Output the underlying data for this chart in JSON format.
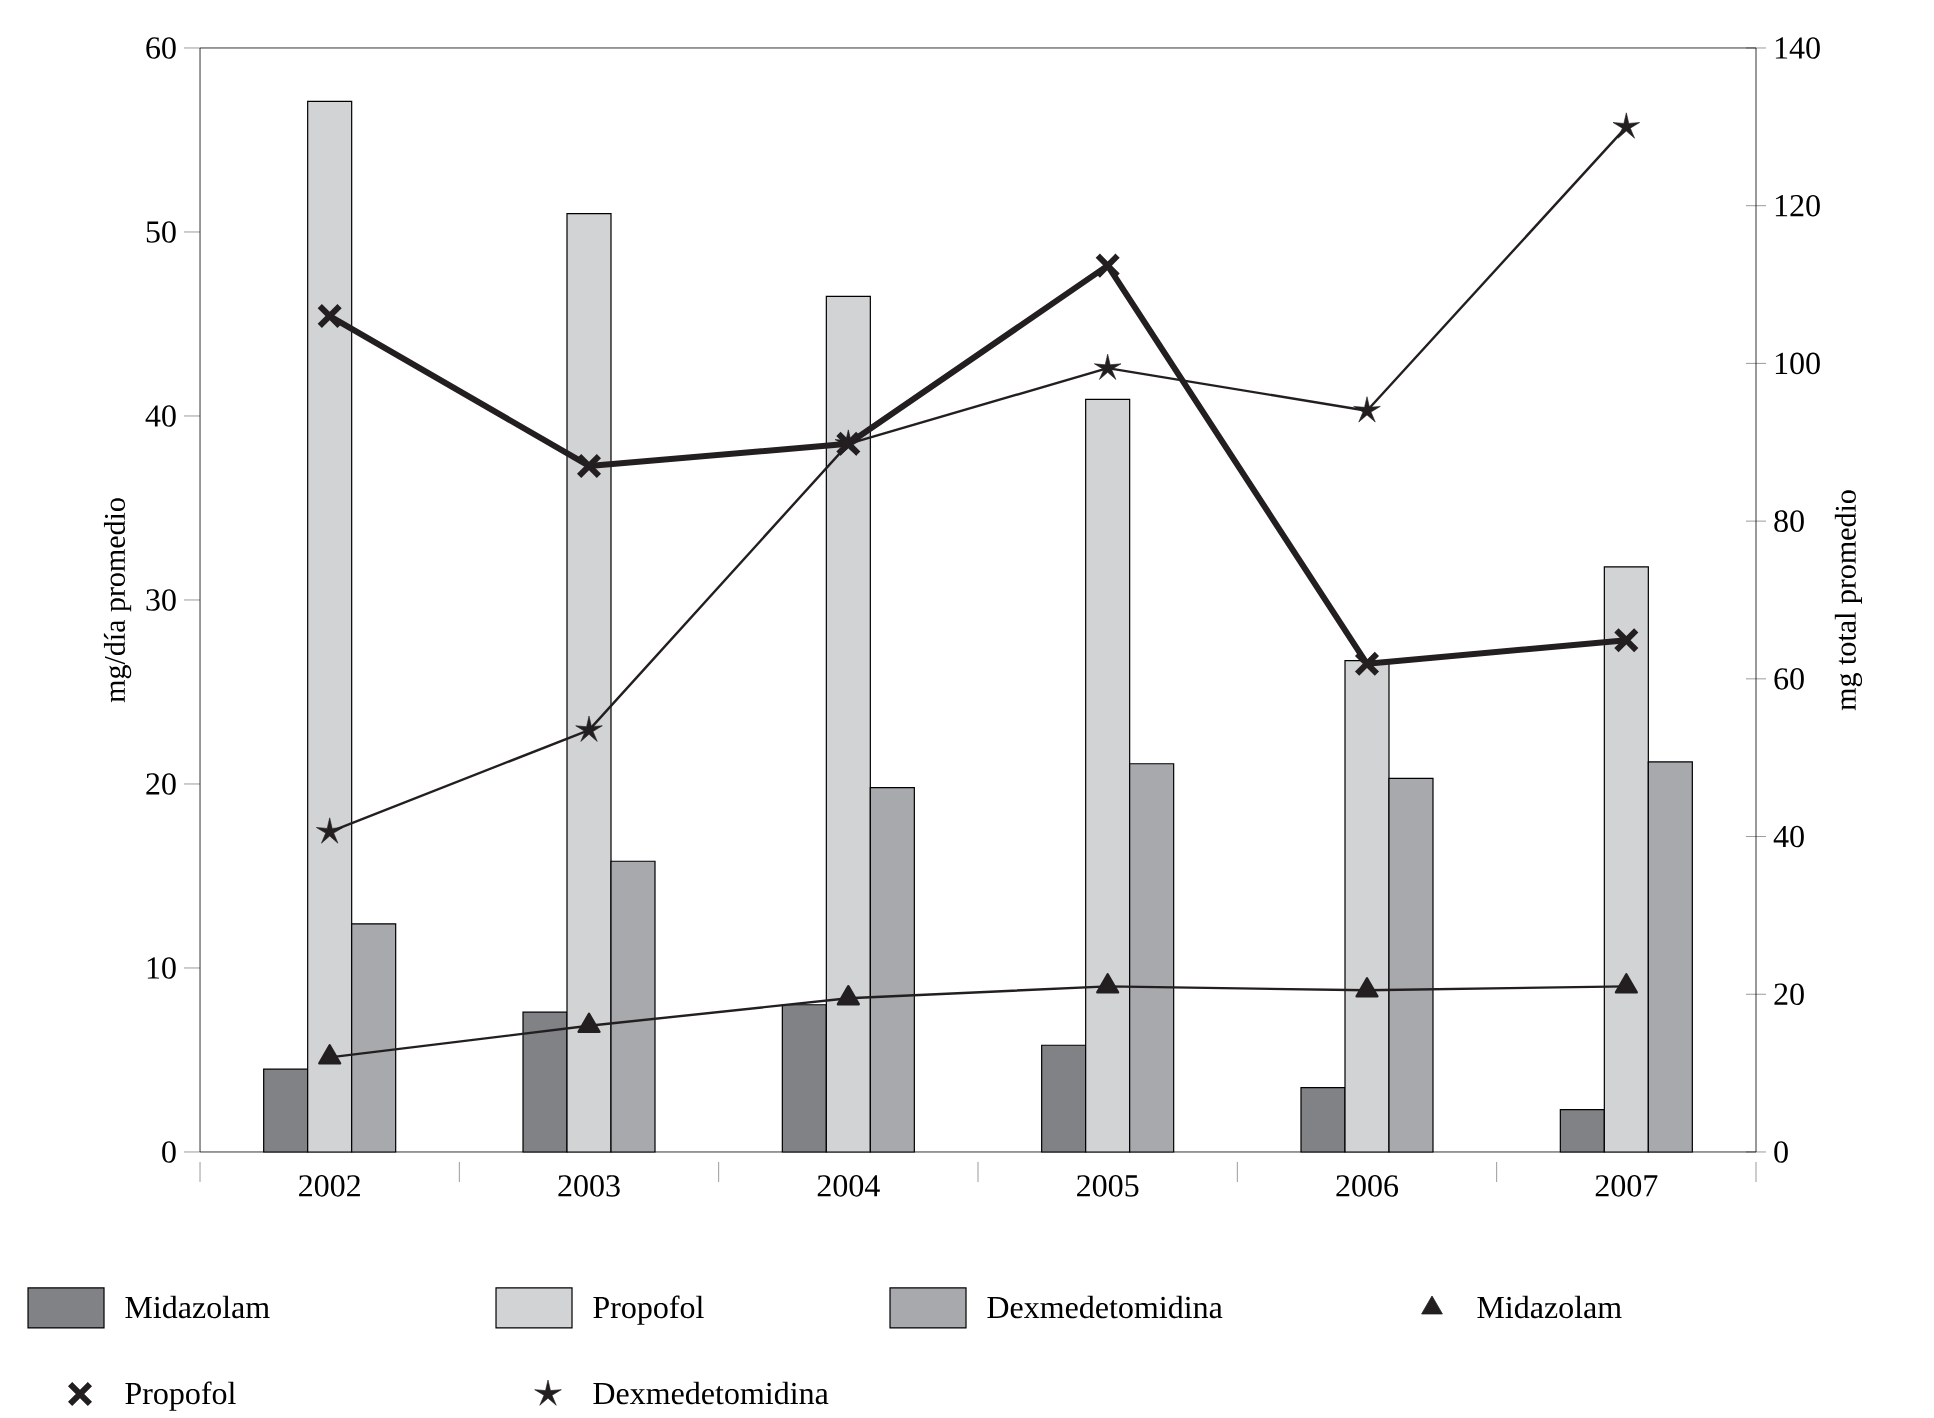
{
  "chart_data": {
    "type": "bar",
    "categories": [
      "2002",
      "2003",
      "2004",
      "2005",
      "2006",
      "2007"
    ],
    "ylabel": "mg/día promedio",
    "y2label": "mg total promedio",
    "ylim": [
      0,
      60
    ],
    "yticks": [
      0,
      10,
      20,
      30,
      40,
      50,
      60
    ],
    "y2lim": [
      0,
      140
    ],
    "y2ticks": [
      0,
      20,
      40,
      60,
      80,
      100,
      120,
      140
    ],
    "legend": "bottom",
    "series": [
      {
        "name": "Midazolam",
        "color": "#808285",
        "values": [
          4.5,
          7.6,
          8.0,
          5.8,
          3.5,
          2.3
        ]
      },
      {
        "name": "Propofol",
        "color": "#d1d3d4",
        "values": [
          57.1,
          51.0,
          46.5,
          40.9,
          26.7,
          31.8
        ]
      },
      {
        "name": "Dexmedetomidina",
        "color": "#a7a9ac",
        "values": [
          12.4,
          15.8,
          19.8,
          21.1,
          20.3,
          21.2
        ]
      },
      {
        "name": "Midazolam",
        "type": "line",
        "axis": "y2",
        "marker": "triangle",
        "color": "#231f20",
        "values": [
          12,
          16,
          19.5,
          21,
          20.5,
          21
        ]
      },
      {
        "name": "Propofol",
        "type": "line",
        "axis": "y2",
        "marker": "cross",
        "color": "#231f20",
        "values": [
          106,
          87,
          89.8,
          112.4,
          61.9,
          64.9
        ]
      },
      {
        "name": "Dexmedetomidina",
        "type": "line",
        "axis": "y2",
        "marker": "star",
        "color": "#231f20",
        "values": [
          40.6,
          53.5,
          89.8,
          99.4,
          94,
          130
        ]
      }
    ]
  }
}
